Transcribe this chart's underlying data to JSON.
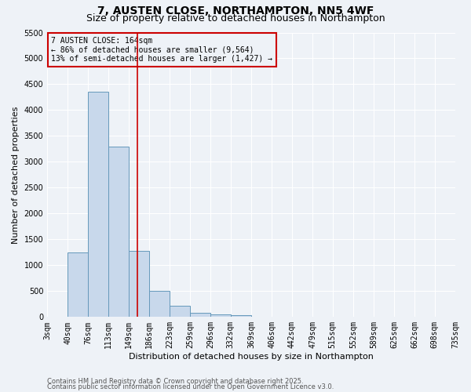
{
  "title": "7, AUSTEN CLOSE, NORTHAMPTON, NN5 4WF",
  "subtitle": "Size of property relative to detached houses in Northampton",
  "xlabel": "Distribution of detached houses by size in Northampton",
  "ylabel": "Number of detached properties",
  "bin_edges": [
    3,
    40,
    76,
    113,
    149,
    186,
    223,
    259,
    296,
    332,
    369,
    406,
    442,
    479,
    515,
    552,
    589,
    625,
    662,
    698,
    735
  ],
  "bar_heights": [
    0,
    1250,
    4350,
    3300,
    1280,
    500,
    210,
    80,
    50,
    40,
    0,
    0,
    0,
    0,
    0,
    0,
    0,
    0,
    0,
    0
  ],
  "bar_color": "#c8d8eb",
  "bar_edge_color": "#6699bb",
  "red_line_x": 164,
  "ylim": [
    0,
    5500
  ],
  "yticks": [
    0,
    500,
    1000,
    1500,
    2000,
    2500,
    3000,
    3500,
    4000,
    4500,
    5000,
    5500
  ],
  "annotation_line1": "7 AUSTEN CLOSE: 164sqm",
  "annotation_line2": "← 86% of detached houses are smaller (9,564)",
  "annotation_line3": "13% of semi-detached houses are larger (1,427) →",
  "annotation_box_color": "#cc0000",
  "footnote1": "Contains HM Land Registry data © Crown copyright and database right 2025.",
  "footnote2": "Contains public sector information licensed under the Open Government Licence v3.0.",
  "bg_color": "#eef2f7",
  "grid_color": "#ffffff",
  "title_fontsize": 10,
  "subtitle_fontsize": 9,
  "label_fontsize": 8,
  "tick_fontsize": 7,
  "annot_fontsize": 7
}
